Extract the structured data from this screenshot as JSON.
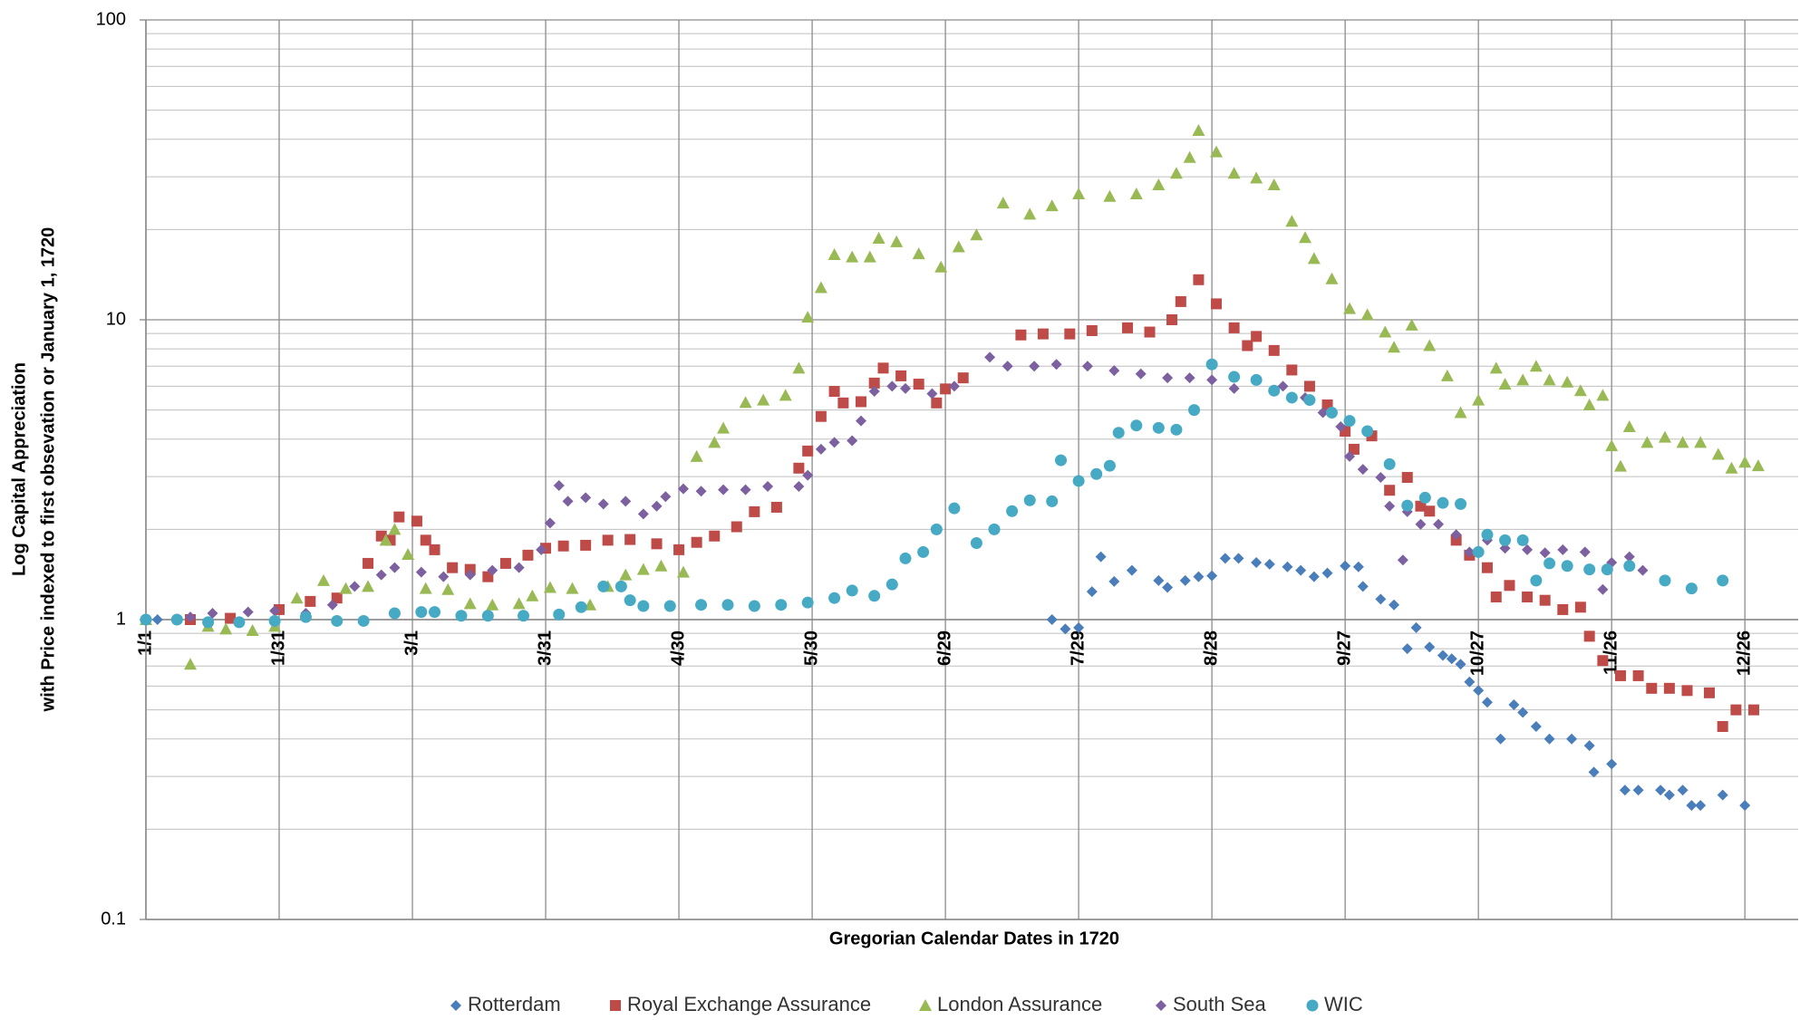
{
  "chart_data": {
    "type": "scatter",
    "x_label": "Gregorian Calendar Dates in 1720",
    "y_label": [
      "Log Capital Appreciation",
      "with Price indexed to first obsevation or January 1, 1720"
    ],
    "xlim": [
      0,
      372
    ],
    "xticks": [
      {
        "value": 0,
        "label": "1/1"
      },
      {
        "value": 30,
        "label": "1/31"
      },
      {
        "value": 60,
        "label": "3/1"
      },
      {
        "value": 90,
        "label": "3/31"
      },
      {
        "value": 120,
        "label": "4/30"
      },
      {
        "value": 150,
        "label": "5/30"
      },
      {
        "value": 180,
        "label": "6/29"
      },
      {
        "value": 210,
        "label": "7/29"
      },
      {
        "value": 240,
        "label": "8/28"
      },
      {
        "value": 270,
        "label": "9/27"
      },
      {
        "value": 300,
        "label": "10/27"
      },
      {
        "value": 330,
        "label": "11/26"
      },
      {
        "value": 360,
        "label": "12/26"
      }
    ],
    "ylim": [
      0.1,
      100
    ],
    "yticks": [
      0.1,
      1,
      10,
      100
    ],
    "y_scale": "log",
    "grid": true,
    "minor_grid": true,
    "legend": "bottom",
    "series": [
      {
        "name": "Rotterdam",
        "color": "#4a7ebb",
        "marker": "diamond",
        "x": [
          0,
          2.6,
          204,
          207,
          210,
          213,
          215,
          218,
          222,
          228,
          230,
          234,
          237,
          240,
          243,
          246,
          250,
          253,
          257,
          260,
          263,
          266,
          270,
          273,
          274,
          278,
          281,
          284,
          286,
          289,
          292,
          294,
          296,
          298,
          300,
          302,
          305,
          308,
          310,
          313,
          316,
          321,
          325,
          326,
          330,
          333,
          336,
          341,
          343,
          346,
          348,
          350,
          355,
          360
        ],
        "values": [
          1.0,
          1.0,
          1.0,
          0.93,
          0.94,
          1.24,
          1.62,
          1.34,
          1.46,
          1.35,
          1.28,
          1.35,
          1.39,
          1.4,
          1.6,
          1.6,
          1.55,
          1.53,
          1.5,
          1.46,
          1.39,
          1.43,
          1.51,
          1.5,
          1.29,
          1.17,
          1.12,
          0.8,
          0.94,
          0.81,
          0.76,
          0.74,
          0.71,
          0.62,
          0.58,
          0.53,
          0.4,
          0.52,
          0.49,
          0.44,
          0.4,
          0.4,
          0.38,
          0.31,
          0.33,
          0.27,
          0.27,
          0.27,
          0.26,
          0.27,
          0.24,
          0.24,
          0.26,
          0.24
        ]
      },
      {
        "name": "Royal Exchange Assurance",
        "color": "#be4b48",
        "marker": "square",
        "x": [
          10,
          19,
          30,
          37,
          43,
          50,
          53,
          55,
          57,
          61,
          63,
          65,
          69,
          73,
          77,
          81,
          86,
          90,
          94,
          99,
          104,
          109,
          115,
          120,
          124,
          128,
          133,
          137,
          142,
          147,
          149,
          152,
          155,
          157,
          161,
          164,
          166,
          170,
          174,
          178,
          180,
          184,
          197,
          202,
          208,
          213,
          221,
          226,
          231,
          233,
          237,
          241,
          245,
          248,
          250,
          254,
          258,
          262,
          266,
          270,
          272,
          276,
          280,
          284,
          287,
          289,
          295,
          298,
          302,
          304,
          307,
          311,
          315,
          319,
          323,
          325,
          328,
          332,
          336,
          339,
          343,
          347,
          352,
          355,
          358,
          362
        ],
        "values": [
          1.0,
          1.01,
          1.08,
          1.15,
          1.18,
          1.54,
          1.9,
          1.84,
          2.2,
          2.13,
          1.84,
          1.71,
          1.49,
          1.47,
          1.39,
          1.54,
          1.64,
          1.73,
          1.76,
          1.77,
          1.84,
          1.85,
          1.79,
          1.71,
          1.81,
          1.9,
          2.04,
          2.29,
          2.37,
          3.2,
          3.65,
          4.76,
          5.77,
          5.28,
          5.33,
          6.15,
          6.9,
          6.5,
          6.1,
          5.28,
          5.88,
          6.4,
          8.9,
          8.97,
          8.97,
          9.2,
          9.4,
          9.1,
          10.0,
          11.5,
          13.6,
          11.3,
          9.4,
          8.2,
          8.8,
          7.9,
          6.8,
          6.0,
          5.2,
          4.25,
          3.7,
          4.1,
          2.7,
          2.98,
          2.39,
          2.3,
          1.84,
          1.64,
          1.49,
          1.19,
          1.3,
          1.19,
          1.16,
          1.08,
          1.1,
          0.88,
          0.73,
          0.65,
          0.65,
          0.59,
          0.59,
          0.58,
          0.57,
          0.44,
          0.5,
          0.5
        ]
      },
      {
        "name": "London Assurance",
        "color": "#98b954",
        "marker": "triangle",
        "x": [
          0,
          10,
          14,
          18,
          24,
          29,
          34,
          40,
          45,
          50,
          54,
          56,
          59,
          63,
          68,
          73,
          78,
          84,
          87,
          91,
          96,
          100,
          104,
          108,
          112,
          116,
          121,
          124,
          128,
          130,
          135,
          139,
          144,
          147,
          149,
          152,
          155,
          159,
          163,
          165,
          169,
          174,
          179,
          183,
          187,
          193,
          199,
          204,
          210,
          217,
          223,
          228,
          232,
          235,
          237,
          241,
          245,
          250,
          254,
          258,
          261,
          263,
          267,
          271,
          275,
          279,
          281,
          285,
          289,
          293,
          296,
          300,
          304,
          306,
          310,
          313,
          316,
          320,
          323,
          325,
          328,
          330,
          332,
          334,
          338,
          342,
          346,
          350,
          354,
          357,
          360,
          363
        ],
        "values": [
          1.0,
          0.71,
          0.95,
          0.93,
          0.92,
          0.95,
          1.18,
          1.35,
          1.27,
          1.29,
          1.84,
          2.0,
          1.65,
          1.27,
          1.26,
          1.13,
          1.12,
          1.13,
          1.2,
          1.28,
          1.27,
          1.12,
          1.29,
          1.41,
          1.47,
          1.51,
          1.44,
          3.5,
          3.9,
          4.35,
          5.3,
          5.4,
          5.6,
          6.9,
          10.2,
          12.8,
          16.5,
          16.2,
          16.2,
          18.7,
          18.2,
          16.6,
          15,
          17.5,
          19.2,
          24.5,
          22.5,
          24,
          26.3,
          25.8,
          26.3,
          28.2,
          30.8,
          34.8,
          42.8,
          36.3,
          30.8,
          29.7,
          28.2,
          21.3,
          18.8,
          16,
          13.7,
          10.9,
          10.4,
          9.1,
          8.1,
          9.6,
          8.2,
          6.5,
          4.9,
          5.4,
          6.9,
          6.1,
          6.3,
          7.0,
          6.3,
          6.2,
          5.8,
          5.2,
          5.6,
          3.8,
          3.25,
          4.4,
          3.9,
          4.06,
          3.9,
          3.9,
          3.56,
          3.2,
          3.35,
          3.26
        ]
      },
      {
        "name": "South Sea",
        "color": "#7d60a0",
        "marker": "diamond",
        "x": [
          0,
          10,
          15,
          23,
          29,
          36,
          42,
          47,
          53,
          56,
          62,
          67,
          73,
          78,
          84,
          89,
          91,
          93,
          95,
          99,
          103,
          108,
          112,
          115,
          117,
          121,
          125,
          130,
          135,
          140,
          147,
          149,
          152,
          155,
          159,
          161,
          164,
          168,
          171,
          177,
          182,
          190,
          194,
          200,
          205,
          212,
          218,
          224,
          230,
          235,
          240,
          245,
          250,
          256,
          261,
          265,
          269,
          271,
          274,
          278,
          280,
          283,
          284,
          287,
          291,
          295,
          298,
          302,
          306,
          311,
          315,
          319,
          324,
          328,
          330,
          334,
          337
        ],
        "values": [
          1.0,
          1.02,
          1.05,
          1.06,
          1.07,
          1.05,
          1.12,
          1.29,
          1.41,
          1.49,
          1.44,
          1.39,
          1.41,
          1.46,
          1.49,
          1.71,
          2.1,
          2.8,
          2.48,
          2.55,
          2.43,
          2.48,
          2.25,
          2.39,
          2.57,
          2.73,
          2.68,
          2.71,
          2.71,
          2.78,
          2.78,
          3.03,
          3.7,
          3.9,
          3.95,
          4.6,
          5.77,
          6.0,
          5.9,
          5.67,
          6.0,
          7.5,
          7.0,
          7.0,
          7.1,
          7.0,
          6.77,
          6.6,
          6.4,
          6.4,
          6.3,
          5.9,
          6.3,
          6.0,
          5.5,
          4.9,
          4.4,
          3.5,
          3.17,
          2.98,
          2.39,
          1.58,
          2.29,
          2.08,
          2.08,
          1.92,
          1.68,
          1.84,
          1.73,
          1.71,
          1.67,
          1.71,
          1.68,
          1.26,
          1.55,
          1.62,
          1.46
        ]
      },
      {
        "name": "WIC",
        "color": "#46aac5",
        "marker": "circle",
        "x": [
          0,
          7,
          14,
          21,
          29,
          36,
          43,
          49,
          56,
          62,
          65,
          71,
          77,
          85,
          93,
          98,
          103,
          107,
          109,
          112,
          118,
          125,
          131,
          137,
          143,
          149,
          155,
          159,
          164,
          168,
          171,
          175,
          178,
          182,
          187,
          191,
          195,
          199,
          204,
          206,
          210,
          214,
          217,
          219,
          223,
          228,
          232,
          236,
          240,
          245,
          250,
          254,
          258,
          262,
          267,
          271,
          275,
          280,
          284,
          288,
          292,
          296,
          300,
          302,
          306,
          310,
          313,
          316,
          320,
          325,
          329,
          334,
          342,
          348,
          355
        ],
        "values": [
          1.0,
          1.0,
          0.98,
          0.98,
          0.99,
          1.02,
          0.99,
          0.99,
          1.05,
          1.06,
          1.06,
          1.03,
          1.03,
          1.03,
          1.04,
          1.1,
          1.29,
          1.29,
          1.16,
          1.11,
          1.11,
          1.12,
          1.12,
          1.11,
          1.12,
          1.14,
          1.18,
          1.25,
          1.2,
          1.31,
          1.6,
          1.68,
          2.0,
          2.35,
          1.8,
          2.0,
          2.3,
          2.5,
          2.48,
          3.4,
          2.9,
          3.06,
          3.26,
          4.2,
          4.44,
          4.36,
          4.3,
          5.0,
          7.1,
          6.45,
          6.3,
          5.8,
          5.5,
          5.4,
          4.9,
          4.6,
          4.25,
          3.3,
          2.4,
          2.55,
          2.45,
          2.43,
          1.68,
          1.92,
          1.84,
          1.84,
          1.35,
          1.54,
          1.51,
          1.47,
          1.47,
          1.51,
          1.35,
          1.27,
          1.35
        ]
      }
    ]
  }
}
